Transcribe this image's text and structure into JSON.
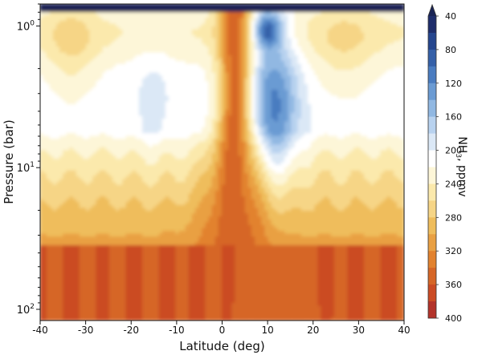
{
  "chart_data": {
    "type": "heatmap",
    "title": "",
    "xlabel": "Latitude (deg)",
    "ylabel": "Pressure (bar)",
    "xlim": [
      -40,
      40
    ],
    "ylim": [
      0.7,
      120
    ],
    "y_scale": "log",
    "y_inverted": true,
    "x_ticks": [
      -40,
      -30,
      -20,
      -10,
      0,
      10,
      20,
      30,
      40
    ],
    "x_tick_labels": [
      "-40",
      "-30",
      "-20",
      "-10",
      "0",
      "10",
      "20",
      "30",
      "40"
    ],
    "y_ticks": [
      1,
      10,
      100
    ],
    "y_tick_labels": [
      {
        "base": "10",
        "exp": "0"
      },
      {
        "base": "10",
        "exp": "1"
      },
      {
        "base": "10",
        "exp": "2"
      }
    ],
    "colorbar": {
      "label_main": "NH",
      "label_sub": "3",
      "label_unit": ", ppmv",
      "levels": [
        40,
        60,
        80,
        100,
        120,
        140,
        160,
        180,
        200,
        220,
        240,
        260,
        280,
        300,
        320,
        340,
        360,
        380,
        400
      ],
      "tick_labels": [
        "40",
        "80",
        "120",
        "160",
        "200",
        "240",
        "280",
        "320",
        "360",
        "400"
      ],
      "extend": "min",
      "colors": [
        "#1e2d6b",
        "#25468e",
        "#3560a8",
        "#4a7cc0",
        "#6b9bd3",
        "#91b8e2",
        "#b8d2ef",
        "#dbe8f6",
        "#ffffff",
        "#fdf6d8",
        "#fbe9ac",
        "#f6d586",
        "#efbd5c",
        "#e9a043",
        "#e2822f",
        "#d66627",
        "#cb4b24",
        "#b3332a"
      ],
      "overflow_color": "#1a2455"
    },
    "grid": false,
    "legend": "none"
  }
}
